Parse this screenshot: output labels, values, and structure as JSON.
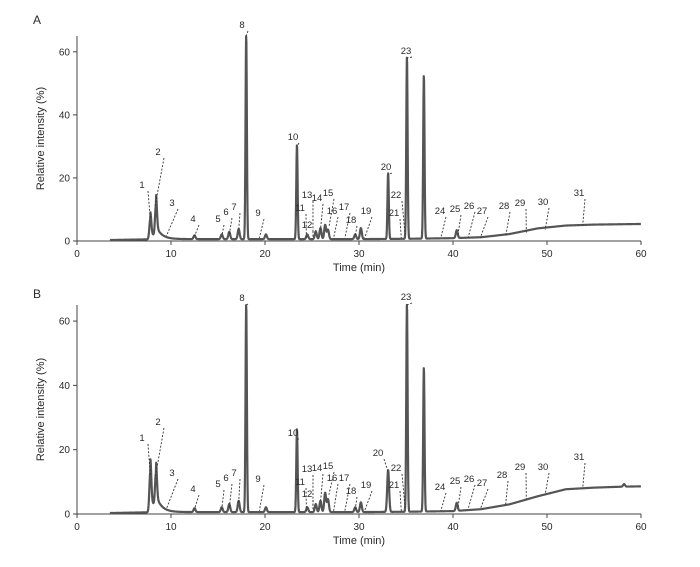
{
  "chart_data": [
    {
      "panel": "A",
      "type": "line",
      "xlabel": "Time (min)",
      "ylabel": "Relative intensity (%)",
      "xlim": [
        0,
        60
      ],
      "ylim": [
        0,
        65
      ],
      "x_ticks": [
        0,
        10,
        20,
        30,
        40,
        50,
        60
      ],
      "y_ticks": [
        0,
        20,
        40,
        60
      ],
      "baseline": [
        [
          0,
          0.2
        ],
        [
          3.5,
          0.3
        ],
        [
          7,
          0.5
        ],
        [
          10.5,
          0.6
        ],
        [
          15,
          0.6
        ],
        [
          20,
          0.6
        ],
        [
          25,
          0.6
        ],
        [
          30,
          0.6
        ],
        [
          35,
          0.7
        ],
        [
          40,
          0.9
        ],
        [
          43,
          1.2
        ],
        [
          46,
          2.2
        ],
        [
          49,
          4
        ],
        [
          52,
          4.9
        ],
        [
          55,
          5.2
        ],
        [
          60,
          5.4
        ]
      ],
      "peaks": [
        {
          "t": 7.8,
          "h": 6.5
        },
        {
          "t": 8.4,
          "h": 10
        },
        {
          "t": 12.5,
          "h": 1.2
        },
        {
          "t": 15.4,
          "h": 1.5
        },
        {
          "t": 16.2,
          "h": 2.3
        },
        {
          "t": 17.2,
          "h": 3.2
        },
        {
          "t": 18.0,
          "h": 65
        },
        {
          "t": 20.1,
          "h": 1.5
        },
        {
          "t": 23.4,
          "h": 30
        },
        {
          "t": 24.5,
          "h": 1.5
        },
        {
          "t": 25.4,
          "h": 2.5
        },
        {
          "t": 25.9,
          "h": 3.5
        },
        {
          "t": 26.4,
          "h": 4.5
        },
        {
          "t": 26.7,
          "h": 3
        },
        {
          "t": 29.6,
          "h": 1.5
        },
        {
          "t": 30.2,
          "h": 3.5
        },
        {
          "t": 33.1,
          "h": 21
        },
        {
          "t": 35.1,
          "h": 58
        },
        {
          "t": 36.9,
          "h": 52
        },
        {
          "t": 40.4,
          "h": 2.5
        }
      ],
      "peak_labels": [
        {
          "label": "1",
          "t": 7.8,
          "y": 7
        },
        {
          "label": "2",
          "t": 8.3,
          "y": 11
        },
        {
          "label": "3",
          "t": 9.5,
          "y": 1.5
        },
        {
          "label": "4",
          "t": 12.5,
          "y": 1.5
        },
        {
          "label": "5",
          "t": 15.4,
          "y": 1.5
        },
        {
          "label": "6",
          "t": 16.2,
          "y": 2
        },
        {
          "label": "7",
          "t": 17.2,
          "y": 3.5
        },
        {
          "label": "8",
          "t": 18.0,
          "y": 65
        },
        {
          "label": "9",
          "t": 19.4,
          "y": 1
        },
        {
          "label": "10",
          "t": 23.4,
          "y": 30
        },
        {
          "label": "11",
          "t": 24.4,
          "y": 1
        },
        {
          "label": "12",
          "t": 25.1,
          "y": 1
        },
        {
          "label": "13",
          "t": 25.1,
          "y": 2.5
        },
        {
          "label": "14",
          "t": 25.9,
          "y": 3.5
        },
        {
          "label": "15",
          "t": 26.8,
          "y": 4.5
        },
        {
          "label": "16",
          "t": 27.3,
          "y": 1
        },
        {
          "label": "17",
          "t": 28.5,
          "y": 1
        },
        {
          "label": "18",
          "t": 29.6,
          "y": 1.5
        },
        {
          "label": "19",
          "t": 30.6,
          "y": 1
        },
        {
          "label": "20",
          "t": 33.1,
          "y": 21
        },
        {
          "label": "21",
          "t": 34.5,
          "y": 1
        },
        {
          "label": "22",
          "t": 34.9,
          "y": 2
        },
        {
          "label": "23",
          "t": 35.1,
          "y": 58
        },
        {
          "label": "24",
          "t": 38.7,
          "y": 1
        },
        {
          "label": "25",
          "t": 40.5,
          "y": 1.5
        },
        {
          "label": "26",
          "t": 41.6,
          "y": 1
        },
        {
          "label": "27",
          "t": 42.9,
          "y": 1
        },
        {
          "label": "28",
          "t": 45.6,
          "y": 1.5
        },
        {
          "label": "29",
          "t": 47.8,
          "y": 2.5
        },
        {
          "label": "30",
          "t": 49.8,
          "y": 3.5
        },
        {
          "label": "31",
          "t": 53.8,
          "y": 5
        }
      ]
    },
    {
      "panel": "B",
      "type": "line",
      "xlabel": "Time (min)",
      "ylabel": "Relative intensity (%)",
      "xlim": [
        0,
        60
      ],
      "ylim": [
        0,
        65
      ],
      "x_ticks": [
        0,
        10,
        20,
        30,
        40,
        50,
        60
      ],
      "y_ticks": [
        0,
        20,
        40,
        60
      ],
      "baseline": [
        [
          0,
          0.2
        ],
        [
          3.5,
          0.3
        ],
        [
          7,
          0.5
        ],
        [
          10.5,
          0.6
        ],
        [
          15,
          0.6
        ],
        [
          20,
          0.6
        ],
        [
          25,
          0.6
        ],
        [
          30,
          0.6
        ],
        [
          35,
          0.7
        ],
        [
          40,
          0.9
        ],
        [
          43,
          1.5
        ],
        [
          46,
          3
        ],
        [
          49,
          5.5
        ],
        [
          52,
          7.7
        ],
        [
          55,
          8.2
        ],
        [
          58,
          8.5
        ],
        [
          60,
          8.6
        ]
      ],
      "peaks": [
        {
          "t": 7.8,
          "h": 12.5
        },
        {
          "t": 8.4,
          "h": 10.5
        },
        {
          "t": 12.5,
          "h": 1.2
        },
        {
          "t": 15.4,
          "h": 1.5
        },
        {
          "t": 16.2,
          "h": 2.5
        },
        {
          "t": 17.2,
          "h": 3.5
        },
        {
          "t": 18.0,
          "h": 65
        },
        {
          "t": 20.1,
          "h": 1.5
        },
        {
          "t": 23.4,
          "h": 26
        },
        {
          "t": 24.5,
          "h": 1.5
        },
        {
          "t": 25.4,
          "h": 2.5
        },
        {
          "t": 25.9,
          "h": 3.5
        },
        {
          "t": 26.4,
          "h": 6
        },
        {
          "t": 26.7,
          "h": 4
        },
        {
          "t": 29.6,
          "h": 1.5
        },
        {
          "t": 30.2,
          "h": 3
        },
        {
          "t": 33.1,
          "h": 13
        },
        {
          "t": 35.1,
          "h": 65
        },
        {
          "t": 36.9,
          "h": 45
        },
        {
          "t": 40.4,
          "h": 2.5
        },
        {
          "t": 58.2,
          "h": 0.8
        }
      ],
      "peak_labels": [
        {
          "label": "1",
          "t": 7.8,
          "y": 12
        },
        {
          "label": "2",
          "t": 8.3,
          "y": 11
        },
        {
          "label": "3",
          "t": 9.5,
          "y": 1.5
        },
        {
          "label": "4",
          "t": 12.5,
          "y": 1.5
        },
        {
          "label": "5",
          "t": 15.4,
          "y": 1.5
        },
        {
          "label": "6",
          "t": 16.2,
          "y": 2
        },
        {
          "label": "7",
          "t": 17.2,
          "y": 3.5
        },
        {
          "label": "8",
          "t": 18.0,
          "y": 65
        },
        {
          "label": "9",
          "t": 19.4,
          "y": 1
        },
        {
          "label": "10",
          "t": 23.4,
          "y": 26
        },
        {
          "label": "11",
          "t": 24.4,
          "y": 1
        },
        {
          "label": "12",
          "t": 25.1,
          "y": 1
        },
        {
          "label": "13",
          "t": 25.1,
          "y": 2.5
        },
        {
          "label": "14",
          "t": 25.9,
          "y": 3.5
        },
        {
          "label": "15",
          "t": 26.8,
          "y": 6
        },
        {
          "label": "16",
          "t": 27.3,
          "y": 1
        },
        {
          "label": "17",
          "t": 28.5,
          "y": 1
        },
        {
          "label": "18",
          "t": 29.6,
          "y": 1.5
        },
        {
          "label": "19",
          "t": 30.6,
          "y": 1
        },
        {
          "label": "20",
          "t": 33.1,
          "y": 13
        },
        {
          "label": "21",
          "t": 34.5,
          "y": 1
        },
        {
          "label": "22",
          "t": 34.9,
          "y": 2
        },
        {
          "label": "23",
          "t": 35.1,
          "y": 65
        },
        {
          "label": "24",
          "t": 38.7,
          "y": 1
        },
        {
          "label": "25",
          "t": 40.5,
          "y": 1.5
        },
        {
          "label": "26",
          "t": 41.6,
          "y": 1.5
        },
        {
          "label": "27",
          "t": 42.9,
          "y": 1.5
        },
        {
          "label": "28",
          "t": 45.6,
          "y": 3
        },
        {
          "label": "29",
          "t": 47.8,
          "y": 4.5
        },
        {
          "label": "30",
          "t": 49.8,
          "y": 6
        },
        {
          "label": "31",
          "t": 53.8,
          "y": 8
        }
      ]
    }
  ]
}
